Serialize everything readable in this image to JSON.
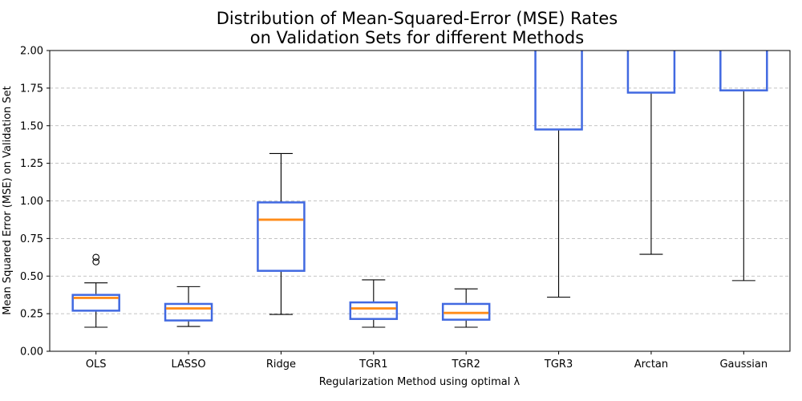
{
  "chart_data": {
    "type": "box",
    "title_line1": "Distribution of Mean-Squared-Error (MSE) Rates",
    "title_line2": "on Validation Sets for different Methods",
    "xlabel": "Regularization Method using optimal λ",
    "ylabel": "Mean Squared Error (MSE) on Validation Set",
    "ylim": [
      0,
      2.0
    ],
    "yticks": [
      0,
      0.25,
      0.5,
      0.75,
      1.0,
      1.25,
      1.5,
      1.75,
      2.0
    ],
    "ytick_labels": [
      "0.00",
      "0.25",
      "0.50",
      "0.75",
      "1.00",
      "1.25",
      "1.50",
      "1.75",
      "2.00"
    ],
    "grid": "y-dashed",
    "box_color": "#4169e1",
    "median_color": "#ff8c1a",
    "categories": [
      "OLS",
      "LASSO",
      "Ridge",
      "TGR1",
      "TGR2",
      "TGR3",
      "Arctan",
      "Gaussian"
    ],
    "boxes": [
      {
        "label": "OLS",
        "whisker_low": 0.16,
        "q1": 0.27,
        "median": 0.355,
        "q3": 0.375,
        "whisker_high": 0.455,
        "outliers": [
          0.595,
          0.625
        ]
      },
      {
        "label": "LASSO",
        "whisker_low": 0.165,
        "q1": 0.205,
        "median": 0.285,
        "q3": 0.315,
        "whisker_high": 0.43,
        "outliers": []
      },
      {
        "label": "Ridge",
        "whisker_low": 0.245,
        "q1": 0.535,
        "median": 0.875,
        "q3": 0.99,
        "whisker_high": 1.315,
        "outliers": []
      },
      {
        "label": "TGR1",
        "whisker_low": 0.16,
        "q1": 0.215,
        "median": 0.285,
        "q3": 0.325,
        "whisker_high": 0.475,
        "outliers": []
      },
      {
        "label": "TGR2",
        "whisker_low": 0.16,
        "q1": 0.21,
        "median": 0.255,
        "q3": 0.315,
        "whisker_high": 0.415,
        "outliers": []
      },
      {
        "label": "TGR3",
        "whisker_low": 0.36,
        "q1": 1.475,
        "median": null,
        "q3": null,
        "whisker_high": null,
        "outliers": []
      },
      {
        "label": "Arctan",
        "whisker_low": 0.645,
        "q1": 1.72,
        "median": null,
        "q3": null,
        "whisker_high": null,
        "outliers": []
      },
      {
        "label": "Gaussian",
        "whisker_low": 0.47,
        "q1": 1.735,
        "median": null,
        "q3": null,
        "whisker_high": null,
        "outliers": []
      }
    ]
  }
}
